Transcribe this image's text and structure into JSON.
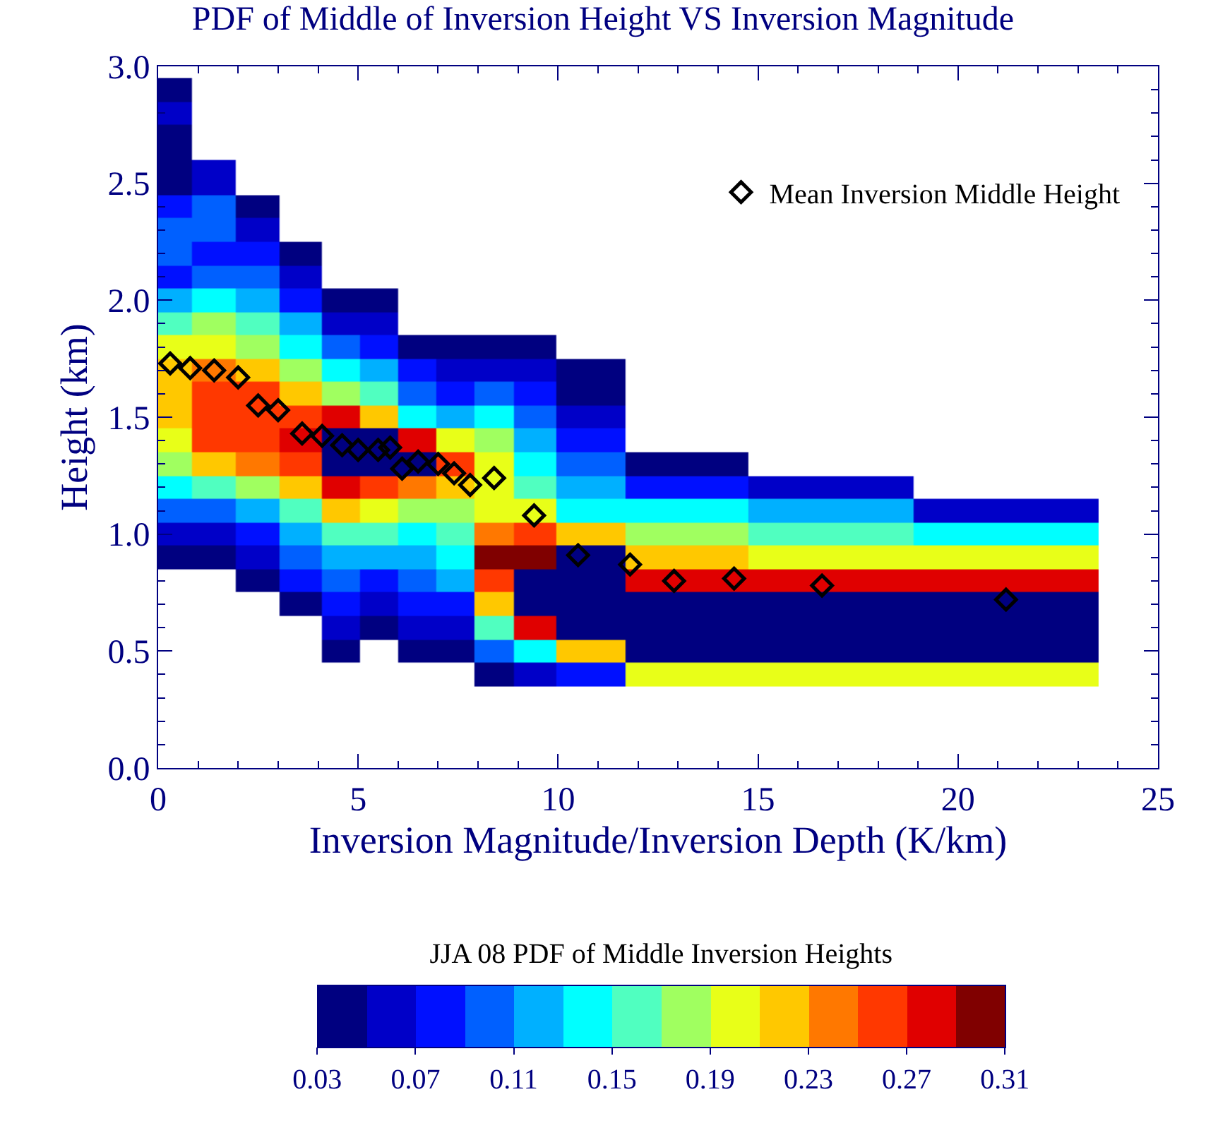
{
  "chart_data": [
    {
      "type": "heatmap",
      "title": "PDF of Middle of Inversion Height VS Inversion Magnitude",
      "xlabel": "Inversion Magnitude/Inversion Depth (K/km)",
      "ylabel": "Height (km)",
      "clabel": "JJA 08 PDF of Middle Inversion Heights",
      "x": [
        0.3,
        1.4,
        2.5,
        3.6,
        4.6,
        5.5,
        6.5,
        7.4,
        8.4,
        9.4,
        10.5,
        12.9,
        16.6,
        21.2
      ],
      "y": [
        2.9,
        2.8,
        2.7,
        2.5,
        2.4,
        2.3,
        2.2,
        2.1,
        2.0,
        1.9,
        1.8,
        1.7,
        1.6,
        1.5,
        1.4,
        1.3,
        1.2,
        1.1,
        1.0,
        0.9,
        0.8,
        0.7,
        0.6,
        0.5,
        0.4
      ],
      "cells": [
        [
          0.04,
          null,
          null,
          null,
          null,
          null,
          null,
          null,
          null,
          null,
          null,
          null,
          null,
          null
        ],
        [
          0.06,
          null,
          null,
          null,
          null,
          null,
          null,
          null,
          null,
          null,
          null,
          null,
          null,
          null
        ],
        [
          0.04,
          null,
          null,
          null,
          null,
          null,
          null,
          null,
          null,
          null,
          null,
          null,
          null,
          null
        ],
        [
          0.04,
          0.06,
          null,
          null,
          null,
          null,
          null,
          null,
          null,
          null,
          null,
          null,
          null,
          null
        ],
        [
          0.08,
          0.1,
          0.04,
          null,
          null,
          null,
          null,
          null,
          null,
          null,
          null,
          null,
          null,
          null
        ],
        [
          0.1,
          0.1,
          0.06,
          null,
          null,
          null,
          null,
          null,
          null,
          null,
          null,
          null,
          null,
          null
        ],
        [
          0.1,
          0.08,
          0.08,
          0.04,
          null,
          null,
          null,
          null,
          null,
          null,
          null,
          null,
          null,
          null
        ],
        [
          0.08,
          0.1,
          0.1,
          0.06,
          null,
          null,
          null,
          null,
          null,
          null,
          null,
          null,
          null,
          null
        ],
        [
          0.12,
          0.14,
          0.12,
          0.08,
          0.04,
          0.04,
          null,
          null,
          null,
          null,
          null,
          null,
          null,
          null
        ],
        [
          0.16,
          0.18,
          0.16,
          0.12,
          0.06,
          0.06,
          null,
          null,
          null,
          null,
          null,
          null,
          null,
          null
        ],
        [
          0.2,
          0.2,
          0.18,
          0.14,
          0.1,
          0.08,
          0.04,
          0.04,
          0.04,
          0.04,
          null,
          null,
          null,
          null
        ],
        [
          0.22,
          0.24,
          0.22,
          0.18,
          0.14,
          0.12,
          0.08,
          0.06,
          0.06,
          0.06,
          0.04,
          null,
          null,
          null
        ],
        [
          0.22,
          0.26,
          0.26,
          0.22,
          0.18,
          0.16,
          0.1,
          0.08,
          0.1,
          0.08,
          0.04,
          null,
          null,
          null
        ],
        [
          0.22,
          0.26,
          0.26,
          0.26,
          0.28,
          0.22,
          0.14,
          0.12,
          0.14,
          0.1,
          0.06,
          null,
          null,
          null
        ],
        [
          0.2,
          0.26,
          0.26,
          0.28,
          0.04,
          0.04,
          0.28,
          0.2,
          0.18,
          0.12,
          0.08,
          null,
          null,
          null
        ],
        [
          0.18,
          0.22,
          0.24,
          0.26,
          0.04,
          0.04,
          0.04,
          0.26,
          0.2,
          0.14,
          0.1,
          0.04,
          null,
          null
        ],
        [
          0.14,
          0.16,
          0.18,
          0.22,
          0.28,
          0.26,
          0.24,
          0.22,
          0.2,
          0.16,
          0.12,
          0.08,
          0.06,
          null
        ],
        [
          0.1,
          0.1,
          0.12,
          0.16,
          0.22,
          0.2,
          0.18,
          0.18,
          0.2,
          0.2,
          0.14,
          0.14,
          0.12,
          0.06
        ],
        [
          0.06,
          0.06,
          0.08,
          0.12,
          0.16,
          0.16,
          0.14,
          0.16,
          0.24,
          0.26,
          0.22,
          0.18,
          0.16,
          0.14
        ],
        [
          0.04,
          0.04,
          0.06,
          0.1,
          0.12,
          0.12,
          0.12,
          0.14,
          0.3,
          0.3,
          0.04,
          0.22,
          0.2,
          0.2
        ],
        [
          null,
          null,
          0.04,
          0.08,
          0.1,
          0.08,
          0.1,
          0.12,
          0.26,
          0.04,
          0.04,
          0.28,
          0.28,
          0.28
        ],
        [
          null,
          null,
          null,
          0.04,
          0.08,
          0.06,
          0.08,
          0.08,
          0.22,
          0.04,
          0.04,
          0.04,
          0.04,
          0.04
        ],
        [
          null,
          null,
          null,
          null,
          0.06,
          0.04,
          0.06,
          0.06,
          0.16,
          0.28,
          0.04,
          0.04,
          0.04,
          0.04
        ],
        [
          null,
          null,
          null,
          null,
          0.04,
          null,
          0.04,
          0.04,
          0.1,
          0.14,
          0.22,
          0.04,
          0.04,
          0.04
        ],
        [
          null,
          null,
          null,
          null,
          null,
          null,
          null,
          null,
          0.04,
          0.06,
          0.08,
          0.2,
          0.2,
          0.2
        ]
      ],
      "colors": [
        "#000080",
        "#0000c8",
        "#0010ff",
        "#0060ff",
        "#00b0ff",
        "#00ffff",
        "#50ffc0",
        "#a0ff60",
        "#e8ff18",
        "#ffc800",
        "#ff7800",
        "#ff3800",
        "#e00000",
        "#800000"
      ],
      "clim": [
        0.03,
        0.31
      ],
      "cticks": [
        {
          "value": 0.03,
          "label": "0.03"
        },
        {
          "value": 0.07,
          "label": "0.07"
        },
        {
          "value": 0.11,
          "label": "0.11"
        },
        {
          "value": 0.15,
          "label": "0.15"
        },
        {
          "value": 0.19,
          "label": "0.19"
        },
        {
          "value": 0.23,
          "label": "0.23"
        },
        {
          "value": 0.27,
          "label": "0.27"
        },
        {
          "value": 0.31,
          "label": "0.31"
        }
      ],
      "xlim": [
        0,
        25
      ],
      "xticks": [
        0,
        5,
        10,
        15,
        20,
        25
      ],
      "ylim": [
        0,
        3
      ],
      "yticks": [
        {
          "value": 0,
          "label": "0.0"
        },
        {
          "value": 0.5,
          "label": "0.5"
        },
        {
          "value": 1,
          "label": "1.0"
        },
        {
          "value": 1.5,
          "label": "1.5"
        },
        {
          "value": 2,
          "label": "2.0"
        },
        {
          "value": 2.5,
          "label": "2.5"
        },
        {
          "value": 3,
          "label": "3.0"
        }
      ],
      "legend": "top right",
      "marker": "diamond",
      "series": [
        {
          "type": "scatter",
          "name": "Mean Inversion Middle Height",
          "color": "#000000",
          "x": [
            0.3,
            0.8,
            1.4,
            2.0,
            2.5,
            3.0,
            3.6,
            4.1,
            4.6,
            5.0,
            5.5,
            5.8,
            6.1,
            6.5,
            7.0,
            7.4,
            7.8,
            8.4,
            9.4,
            10.5,
            11.8,
            12.9,
            14.4,
            16.6,
            21.2
          ],
          "values": [
            1.73,
            1.71,
            1.7,
            1.67,
            1.55,
            1.53,
            1.43,
            1.42,
            1.38,
            1.36,
            1.36,
            1.37,
            1.28,
            1.31,
            1.3,
            1.26,
            1.21,
            1.24,
            1.08,
            0.91,
            0.87,
            0.8,
            0.81,
            0.78,
            0.72
          ]
        }
      ]
    }
  ]
}
